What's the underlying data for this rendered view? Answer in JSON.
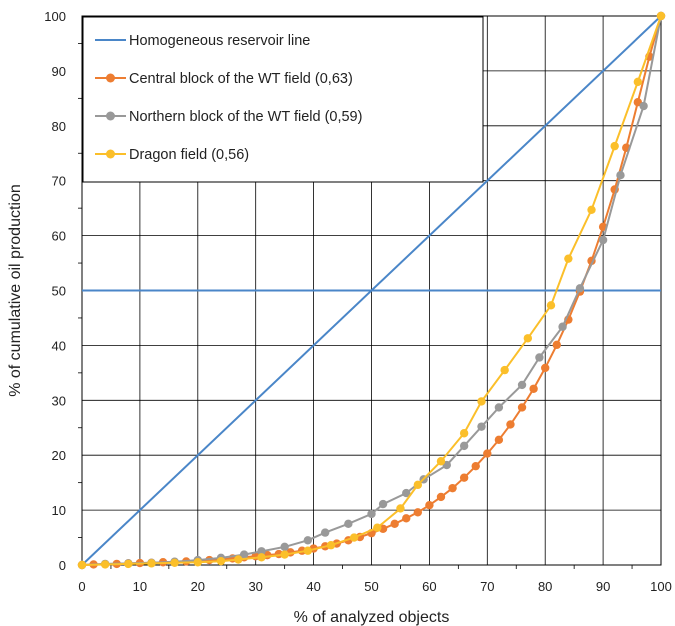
{
  "chart_data": {
    "type": "line",
    "title": "",
    "xlabel": "% of analyzed objects",
    "ylabel": "% of cumulative oil production",
    "xlim": [
      0,
      100
    ],
    "ylim": [
      0,
      100
    ],
    "xticks": [
      "0",
      "10",
      "20",
      "30",
      "40",
      "50",
      "60",
      "70",
      "80",
      "90",
      "100"
    ],
    "yticks": [
      "0",
      "10",
      "20",
      "30",
      "40",
      "50",
      "60",
      "70",
      "80",
      "90",
      "100"
    ],
    "grid": true,
    "legend_position": "top-left",
    "reference_line": {
      "y": 50,
      "color": "#4a86c8"
    },
    "series": [
      {
        "name": "Homogeneous reservoir line",
        "color": "#4a86c8",
        "marker": false,
        "x": [
          0,
          100
        ],
        "y": [
          0,
          100
        ]
      },
      {
        "name": "Central block of the WT field (0,63)",
        "color": "#ed7d31",
        "marker": true,
        "x": [
          0,
          2,
          4,
          6,
          8,
          10,
          12,
          14,
          16,
          18,
          20,
          22,
          24,
          26,
          28,
          30,
          32,
          34,
          36,
          38,
          40,
          42,
          44,
          46,
          48,
          50,
          52,
          54,
          56,
          58,
          60,
          62,
          64,
          66,
          68,
          70,
          72,
          74,
          76,
          78,
          80,
          82,
          84,
          86,
          88,
          90,
          92,
          94,
          96,
          98,
          100
        ],
        "y": [
          0,
          0.1,
          0.15,
          0.2,
          0.3,
          0.35,
          0.4,
          0.5,
          0.55,
          0.65,
          0.8,
          0.9,
          1.0,
          1.2,
          1.4,
          1.6,
          1.8,
          2.0,
          2.3,
          2.6,
          3.0,
          3.4,
          3.9,
          4.5,
          5.1,
          5.8,
          6.6,
          7.5,
          8.5,
          9.6,
          10.9,
          12.4,
          14.0,
          15.9,
          18.0,
          20.3,
          22.8,
          25.6,
          28.7,
          32.1,
          35.9,
          40.1,
          44.7,
          49.8,
          55.4,
          61.6,
          68.4,
          76.0,
          84.3,
          92.6,
          100
        ]
      },
      {
        "name": "Northern block of the WT field (0,59)",
        "color": "#999999",
        "marker": true,
        "x": [
          0,
          4,
          8,
          12,
          16,
          20,
          24,
          28,
          31,
          35,
          39,
          42,
          46,
          50,
          52,
          56,
          59,
          63,
          66,
          69,
          72,
          76,
          79,
          83,
          86,
          90,
          93,
          97,
          100
        ],
        "y": [
          0,
          0.2,
          0.3,
          0.4,
          0.6,
          0.9,
          1.3,
          1.9,
          2.5,
          3.3,
          4.5,
          5.9,
          7.5,
          9.3,
          11.1,
          13.1,
          15.6,
          18.2,
          21.7,
          25.2,
          28.7,
          32.8,
          37.8,
          43.4,
          50.4,
          59.2,
          71.0,
          83.6,
          100
        ]
      },
      {
        "name": "Dragon field (0,56)",
        "color": "#fbbf2a",
        "marker": true,
        "x": [
          0,
          4,
          8,
          12,
          16,
          20,
          24,
          27,
          31,
          35,
          39,
          43,
          47,
          51,
          55,
          58,
          62,
          66,
          69,
          73,
          77,
          81,
          84,
          88,
          92,
          96,
          100
        ],
        "y": [
          0,
          0.1,
          0.2,
          0.3,
          0.4,
          0.5,
          0.7,
          1.0,
          1.4,
          1.9,
          2.6,
          3.6,
          5.0,
          6.8,
          10.3,
          14.6,
          18.9,
          24.0,
          29.8,
          35.5,
          41.3,
          47.3,
          55.8,
          64.7,
          76.3,
          88.0,
          100
        ]
      }
    ]
  }
}
